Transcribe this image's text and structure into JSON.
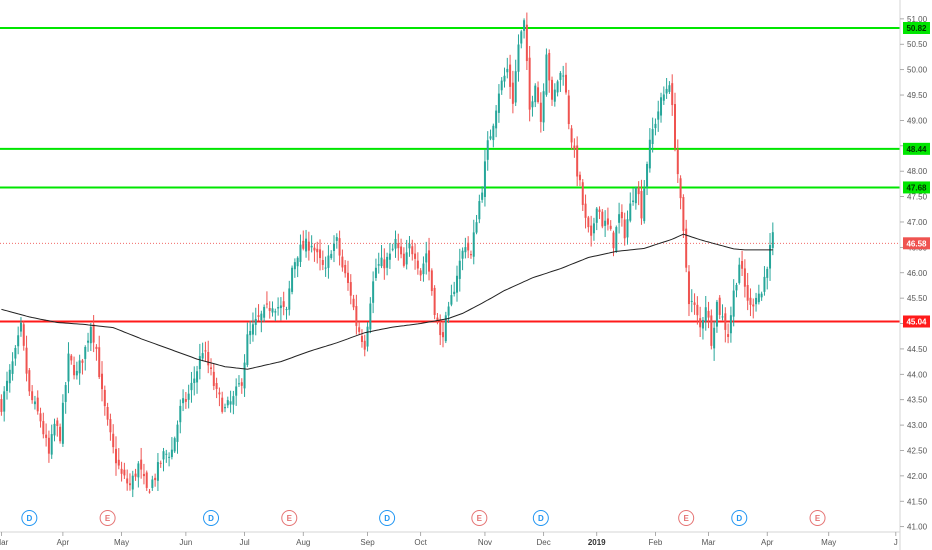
{
  "chart_data": {
    "type": "candlestick",
    "colors": {
      "up": "#26a69a",
      "down": "#ef5350",
      "moving_average": "#222222",
      "support_resistance_green": "#00e600",
      "support_resistance_red": "#ff1a1a",
      "last_price_line": "#ef5350",
      "dividend_badge": "#2196f3",
      "earnings_badge": "#e57373"
    },
    "ylim": [
      40.95,
      51.25
    ],
    "y_ticks": [
      "41.00",
      "41.50",
      "42.00",
      "42.50",
      "43.00",
      "43.50",
      "44.00",
      "44.50",
      "45.00",
      "45.50",
      "46.00",
      "46.50",
      "47.00",
      "47.50",
      "48.00",
      "48.50",
      "49.00",
      "49.50",
      "50.00",
      "50.50",
      "51.00"
    ],
    "x_ticks": [
      {
        "label": "Mar",
        "idx": 0,
        "bold": false
      },
      {
        "label": "Apr",
        "idx": 22,
        "bold": false
      },
      {
        "label": "May",
        "idx": 43,
        "bold": false
      },
      {
        "label": "Jun",
        "idx": 66,
        "bold": false
      },
      {
        "label": "Jul",
        "idx": 87,
        "bold": false
      },
      {
        "label": "Aug",
        "idx": 108,
        "bold": false
      },
      {
        "label": "Sep",
        "idx": 131,
        "bold": false
      },
      {
        "label": "Oct",
        "idx": 150,
        "bold": false
      },
      {
        "label": "Nov",
        "idx": 173,
        "bold": false
      },
      {
        "label": "Dec",
        "idx": 194,
        "bold": false
      },
      {
        "label": "2019",
        "idx": 213,
        "bold": true
      },
      {
        "label": "Feb",
        "idx": 234,
        "bold": false
      },
      {
        "label": "Mar",
        "idx": 253,
        "bold": false
      },
      {
        "label": "Apr",
        "idx": 274,
        "bold": false
      },
      {
        "label": "May",
        "idx": 296,
        "bold": false
      },
      {
        "label": "J",
        "idx": 320,
        "bold": false
      }
    ],
    "key_prices": [
      50.82,
      46.58,
      45.04
    ],
    "horizontal_levels": [
      {
        "value": 50.82,
        "label": "50.82",
        "color": "green"
      },
      {
        "value": 48.44,
        "label": "48.44",
        "color": "green"
      },
      {
        "value": 47.68,
        "label": "47.68",
        "color": "green"
      },
      {
        "value": 45.04,
        "label": "45.04",
        "color": "red"
      }
    ],
    "last_price": {
      "value": 46.58,
      "label": "46.58"
    },
    "events": [
      {
        "type": "D",
        "idx": 10
      },
      {
        "type": "E",
        "idx": 38
      },
      {
        "type": "D",
        "idx": 75
      },
      {
        "type": "E",
        "idx": 103
      },
      {
        "type": "D",
        "idx": 138
      },
      {
        "type": "E",
        "idx": 171
      },
      {
        "type": "D",
        "idx": 193
      },
      {
        "type": "E",
        "idx": 245
      },
      {
        "type": "D",
        "idx": 264
      },
      {
        "type": "E",
        "idx": 292
      }
    ],
    "close_waypoints": [
      [
        0,
        43.4
      ],
      [
        5,
        44.4
      ],
      [
        7,
        44.9
      ],
      [
        10,
        43.6
      ],
      [
        14,
        43.1
      ],
      [
        17,
        42.4
      ],
      [
        19,
        43.0
      ],
      [
        21,
        42.8
      ],
      [
        24,
        44.3
      ],
      [
        27,
        44.0
      ],
      [
        30,
        44.5
      ],
      [
        32,
        45.0
      ],
      [
        34,
        44.5
      ],
      [
        36,
        43.6
      ],
      [
        38,
        43.0
      ],
      [
        40,
        42.5
      ],
      [
        43,
        42.0
      ],
      [
        46,
        41.8
      ],
      [
        49,
        42.2
      ],
      [
        52,
        41.7
      ],
      [
        55,
        42.0
      ],
      [
        58,
        42.4
      ],
      [
        61,
        42.5
      ],
      [
        64,
        43.3
      ],
      [
        67,
        43.6
      ],
      [
        70,
        44.1
      ],
      [
        72,
        44.5
      ],
      [
        75,
        44.0
      ],
      [
        77,
        43.6
      ],
      [
        80,
        43.3
      ],
      [
        83,
        43.5
      ],
      [
        86,
        43.9
      ],
      [
        88,
        44.7
      ],
      [
        91,
        45.0
      ],
      [
        94,
        45.2
      ],
      [
        97,
        45.4
      ],
      [
        100,
        45.3
      ],
      [
        102,
        45.2
      ],
      [
        104,
        46.1
      ],
      [
        106,
        46.4
      ],
      [
        108,
        46.5
      ],
      [
        111,
        46.6
      ],
      [
        113,
        46.3
      ],
      [
        116,
        46.0
      ],
      [
        118,
        46.5
      ],
      [
        120,
        46.6
      ],
      [
        122,
        46.1
      ],
      [
        125,
        45.6
      ],
      [
        127,
        45.0
      ],
      [
        130,
        44.6
      ],
      [
        132,
        45.5
      ],
      [
        134,
        46.1
      ],
      [
        137,
        46.2
      ],
      [
        139,
        46.3
      ],
      [
        141,
        46.6
      ],
      [
        144,
        46.1
      ],
      [
        146,
        46.5
      ],
      [
        148,
        46.4
      ],
      [
        150,
        46.0
      ],
      [
        152,
        46.4
      ],
      [
        155,
        45.3
      ],
      [
        157,
        44.7
      ],
      [
        160,
        45.2
      ],
      [
        163,
        46.0
      ],
      [
        166,
        46.6
      ],
      [
        168,
        46.3
      ],
      [
        170,
        47.1
      ],
      [
        172,
        47.7
      ],
      [
        174,
        48.5
      ],
      [
        176,
        49.0
      ],
      [
        178,
        49.6
      ],
      [
        181,
        50.0
      ],
      [
        183,
        49.4
      ],
      [
        185,
        50.5
      ],
      [
        187,
        50.9
      ],
      [
        189,
        49.2
      ],
      [
        191,
        49.8
      ],
      [
        193,
        49.0
      ],
      [
        195,
        50.4
      ],
      [
        197,
        49.3
      ],
      [
        199,
        49.8
      ],
      [
        201,
        50.0
      ],
      [
        203,
        49.0
      ],
      [
        205,
        48.3
      ],
      [
        207,
        47.7
      ],
      [
        209,
        47.0
      ],
      [
        211,
        46.6
      ],
      [
        213,
        47.4
      ],
      [
        215,
        47.0
      ],
      [
        217,
        46.9
      ],
      [
        219,
        46.6
      ],
      [
        221,
        47.1
      ],
      [
        223,
        46.8
      ],
      [
        225,
        47.3
      ],
      [
        227,
        47.8
      ],
      [
        229,
        47.2
      ],
      [
        231,
        48.2
      ],
      [
        233,
        48.8
      ],
      [
        235,
        49.2
      ],
      [
        237,
        49.5
      ],
      [
        239,
        49.8
      ],
      [
        246,
        45.5
      ],
      [
        248,
        45.3
      ],
      [
        250,
        44.9
      ],
      [
        252,
        45.4
      ],
      [
        254,
        44.7
      ],
      [
        256,
        45.4
      ],
      [
        258,
        45.1
      ],
      [
        260,
        44.8
      ],
      [
        262,
        45.6
      ],
      [
        264,
        46.2
      ],
      [
        266,
        45.7
      ],
      [
        268,
        45.3
      ],
      [
        270,
        45.6
      ],
      [
        272,
        45.6
      ],
      [
        274,
        46.2
      ],
      [
        276,
        46.7
      ]
    ],
    "ma_waypoints": [
      [
        0,
        45.28
      ],
      [
        10,
        45.13
      ],
      [
        20,
        45.02
      ],
      [
        30,
        44.98
      ],
      [
        40,
        44.92
      ],
      [
        50,
        44.7
      ],
      [
        60,
        44.5
      ],
      [
        70,
        44.3
      ],
      [
        80,
        44.15
      ],
      [
        88,
        44.1
      ],
      [
        100,
        44.25
      ],
      [
        110,
        44.45
      ],
      [
        120,
        44.62
      ],
      [
        130,
        44.82
      ],
      [
        140,
        44.93
      ],
      [
        150,
        45.0
      ],
      [
        160,
        45.1
      ],
      [
        165,
        45.2
      ],
      [
        172,
        45.4
      ],
      [
        180,
        45.65
      ],
      [
        190,
        45.9
      ],
      [
        200,
        46.08
      ],
      [
        210,
        46.3
      ],
      [
        220,
        46.42
      ],
      [
        230,
        46.48
      ],
      [
        240,
        46.66
      ],
      [
        244,
        46.76
      ],
      [
        250,
        46.65
      ],
      [
        256,
        46.56
      ],
      [
        262,
        46.47
      ],
      [
        266,
        46.45
      ],
      [
        276,
        46.45
      ]
    ]
  }
}
